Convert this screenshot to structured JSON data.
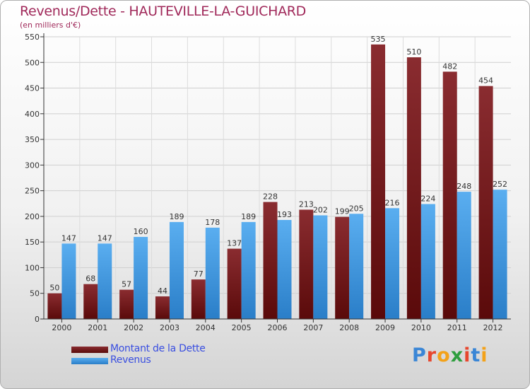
{
  "title": "Revenus/Dette - HAUTEVILLE-LA-GUICHARD",
  "subtitle": "(en milliers d'€)",
  "logo_letters": [
    "P",
    "r",
    "o",
    "x",
    "i",
    "t",
    "i"
  ],
  "logo_colors": [
    "#3a86d6",
    "#e7472e",
    "#f3a21a",
    "#2e9e3e",
    "#e7472e",
    "#3a86d6",
    "#f3a21a"
  ],
  "colors": {
    "dette_top": "#8a2c30",
    "dette_bottom": "#5a0a0a",
    "revenus_top": "#5aaef0",
    "revenus_bottom": "#2a7ec8",
    "title": "#a0295a",
    "legend_text": "#3a4fe0"
  },
  "legend": {
    "dette": "Montant de la Dette",
    "revenus": "Revenus"
  },
  "chart_data": {
    "type": "bar",
    "title": "Revenus/Dette - HAUTEVILLE-LA-GUICHARD",
    "ylabel": "(en milliers d'€)",
    "xlabel": "",
    "ylim": [
      0,
      550
    ],
    "yticks": [
      0,
      50,
      100,
      150,
      200,
      250,
      300,
      350,
      400,
      450,
      500,
      550
    ],
    "grid": true,
    "categories": [
      "2000",
      "2001",
      "2002",
      "2003",
      "2004",
      "2005",
      "2006",
      "2007",
      "2008",
      "2009",
      "2010",
      "2011",
      "2012"
    ],
    "series": [
      {
        "name": "Montant de la Dette",
        "values": [
          50,
          68,
          57,
          44,
          77,
          137,
          228,
          213,
          199,
          535,
          510,
          482,
          454
        ]
      },
      {
        "name": "Revenus",
        "values": [
          147,
          147,
          160,
          189,
          178,
          189,
          193,
          202,
          205,
          216,
          224,
          248,
          252
        ]
      }
    ],
    "legend_position": "bottom-left"
  }
}
